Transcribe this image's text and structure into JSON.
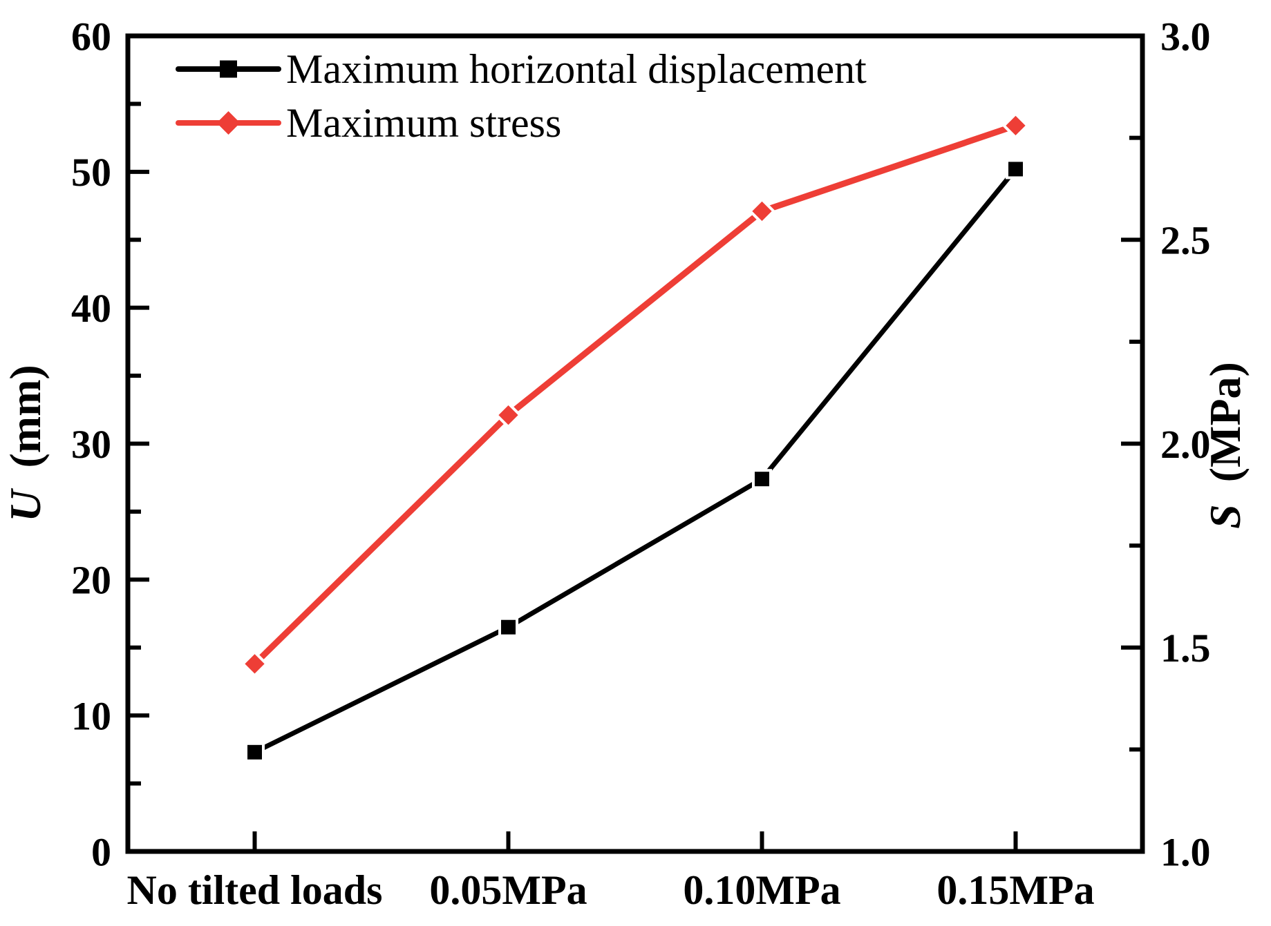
{
  "chart_data": {
    "type": "line",
    "title": "",
    "categories": [
      "No tilted loads",
      "0.05MPa",
      "0.10MPa",
      "0.15MPa"
    ],
    "series": [
      {
        "name": "Maximum horizontal displacement",
        "axis": "left",
        "marker": "square",
        "color": "#000000",
        "line_width": 7,
        "values": [
          7.3,
          16.5,
          27.4,
          50.2
        ]
      },
      {
        "name": "Maximum stress",
        "axis": "right",
        "marker": "diamond",
        "color": "#ee3e36",
        "line_width": 9,
        "values": [
          1.46,
          2.07,
          2.57,
          2.78
        ]
      }
    ],
    "left_axis": {
      "symbol": "U",
      "unit": "(mm)",
      "min": 0,
      "max": 60,
      "major_step": 10,
      "minor_step": 5,
      "tick_labels": [
        "0",
        "10",
        "20",
        "30",
        "40",
        "50",
        "60"
      ]
    },
    "right_axis": {
      "symbol": "S",
      "unit": "(MPa)",
      "min": 1.0,
      "max": 3.0,
      "major_step": 0.5,
      "minor_step": 0.25,
      "tick_labels": [
        "1.0",
        "1.5",
        "2.0",
        "2.5",
        "3.0"
      ]
    },
    "x_axis": {
      "tick_labels": [
        "No tilted loads",
        "0.05MPa",
        "0.10MPa",
        "0.15MPa"
      ]
    },
    "legend": {
      "position": "top-left",
      "entries": [
        "Maximum horizontal displacement",
        "Maximum stress"
      ]
    },
    "grid": false,
    "background": "#ffffff",
    "frame_color": "#000000"
  }
}
